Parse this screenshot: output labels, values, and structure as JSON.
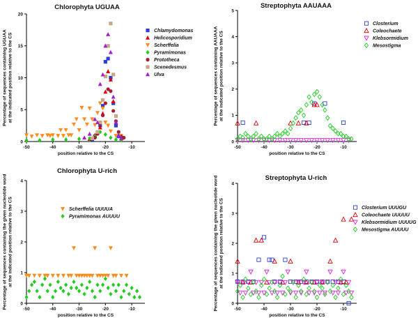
{
  "figure": {
    "background": "#ffffff",
    "axis_color": "#000000"
  },
  "chart_data": [
    {
      "id": "p1",
      "type": "scatter",
      "title": "Chlorophyta UGUAA",
      "xlabel": "position relative to the CS",
      "ylabel": [
        "Percentage of sequences containing UGUAA",
        "at the indicated position relative to the CS"
      ],
      "xlim": [
        -50,
        -5
      ],
      "ylim": [
        0,
        20
      ],
      "xticks": [
        -50,
        -40,
        -30,
        -20,
        -10
      ],
      "yticks": [
        0,
        5,
        10,
        15,
        20
      ],
      "legend_position": "top-right",
      "series": [
        {
          "name": "Chlamydomonas",
          "color": "#2b3fd6",
          "marker": "square",
          "x": [
            -25,
            -24,
            -23,
            -22,
            -21,
            -20,
            -19,
            -18,
            -17,
            -16,
            -15
          ],
          "y": [
            0.3,
            0.8,
            1.4,
            2.5,
            5.6,
            12.5,
            13.0,
            10.0,
            6.0,
            2.5,
            0.8
          ]
        },
        {
          "name": "Helicosporidium",
          "color": "#e00000",
          "marker": "triangle-up",
          "x": [
            -26,
            -24,
            -22,
            -21,
            -20,
            -19,
            -18,
            -17,
            -16,
            -15,
            -14
          ],
          "y": [
            0.4,
            1.0,
            2.2,
            4.4,
            7.8,
            11.0,
            9.7,
            6.3,
            3.0,
            1.2,
            0.5
          ]
        },
        {
          "name": "Scherffelia",
          "color": "#ff8c1a",
          "marker": "triangle-down",
          "x": [
            -50,
            -48,
            -46,
            -44,
            -42,
            -41,
            -40,
            -38,
            -37,
            -36,
            -35,
            -34,
            -33,
            -32,
            -31,
            -30,
            -29,
            -28,
            -27,
            -26,
            -25,
            -24,
            -23,
            -22,
            -21,
            -20,
            -19,
            -18,
            -16,
            -14
          ],
          "y": [
            1.0,
            0.8,
            1.0,
            0.9,
            1.0,
            0.9,
            1.0,
            0.9,
            1.8,
            0.9,
            1.8,
            1.0,
            1.0,
            2.7,
            3.5,
            1.8,
            5.3,
            3.5,
            2.7,
            5.2,
            3.5,
            2.6,
            4.5,
            6.0,
            5.2,
            3.0,
            2.5,
            1.6,
            0.9,
            0.9
          ]
        },
        {
          "name": "Pyramimonas",
          "color": "#22cc22",
          "marker": "diamond",
          "x": [
            -50,
            -45,
            -40,
            -35,
            -30,
            -26,
            -24,
            -22,
            -20,
            -18,
            -16,
            -14
          ],
          "y": [
            0.2,
            0.2,
            0.3,
            0.3,
            0.4,
            0.5,
            0.8,
            1.5,
            1.1,
            0.6,
            0.3,
            0.2
          ]
        },
        {
          "name": "Prototheca",
          "color": "#a51f32",
          "marker": "circle",
          "x": [
            -24,
            -23,
            -22,
            -21,
            -20,
            -19,
            -18,
            -17,
            -16,
            -15,
            -14,
            -13
          ],
          "y": [
            0.6,
            1.2,
            2.8,
            4.1,
            6.0,
            8.2,
            7.9,
            4.8,
            3.2,
            1.5,
            0.8,
            0.6
          ]
        },
        {
          "name": "Scenedesmus",
          "color": "#c8a886",
          "marker": "square",
          "x": [
            -25,
            -23,
            -22,
            -21,
            -20,
            -19,
            -18,
            -17,
            -16,
            -15
          ],
          "y": [
            0.5,
            1.5,
            3.0,
            6.5,
            10.2,
            15.0,
            18.5,
            10.5,
            4.0,
            1.0
          ]
        },
        {
          "name": "Ulva",
          "color": "#a21fcf",
          "marker": "triangle-up",
          "x": [
            -28,
            -26,
            -24,
            -23,
            -22,
            -21,
            -20,
            -19,
            -18,
            -17,
            -16,
            -15,
            -14
          ],
          "y": [
            0.6,
            1.2,
            3.5,
            3.0,
            9.0,
            10.5,
            15.0,
            16.8,
            14.0,
            7.0,
            3.0,
            1.0,
            0.5
          ]
        }
      ]
    },
    {
      "id": "p2",
      "type": "scatter",
      "title": "Streptophyta AAUAAA",
      "xlabel": "position relative to the CS",
      "ylabel": [
        "Percentage of sequences containing AAUAAA",
        "at the indicated position relative to the CS"
      ],
      "xlim": [
        -50,
        -5
      ],
      "ylim": [
        0,
        5
      ],
      "xticks": [
        -50,
        -40,
        -30,
        -20,
        -10
      ],
      "yticks": [
        0,
        1,
        2,
        3,
        4,
        5
      ],
      "legend_position": "top-right",
      "series": [
        {
          "name": "Closterium",
          "color": "#2b3fd6",
          "marker": "square-open",
          "x": [
            -48,
            -25,
            -23,
            -21,
            -17,
            -10
          ],
          "y": [
            0.72,
            0.72,
            0.72,
            1.45,
            1.45,
            0.72
          ]
        },
        {
          "name": "Coleochaete",
          "color": "#e00000",
          "marker": "triangle-up-open",
          "x": [
            -50,
            -43,
            -30,
            -27,
            -24,
            -21,
            -20
          ],
          "y": [
            0.7,
            0.7,
            0.7,
            0.7,
            0.7,
            1.4,
            1.4
          ]
        },
        {
          "name": "Klebsormidium",
          "color": "#e020e0",
          "marker": "triangle-down-open",
          "x": [
            -50,
            -48,
            -46,
            -44,
            -42,
            -40,
            -38,
            -36,
            -34,
            -32,
            -30,
            -28,
            -26,
            -24,
            -22,
            -20,
            -18,
            -16,
            -14,
            -12,
            -10,
            -8
          ],
          "y": [
            0.05,
            0.05,
            0.05,
            0.05,
            0.05,
            0.05,
            0.05,
            0.05,
            0.05,
            0.05,
            0.05,
            0.05,
            0.05,
            0.05,
            0.05,
            0.05,
            0.05,
            0.05,
            0.05,
            0.05,
            0.05,
            0.05
          ]
        },
        {
          "name": "Mesostigma",
          "color": "#22cc22",
          "marker": "diamond-open",
          "x": [
            -50,
            -49,
            -48,
            -47,
            -46,
            -45,
            -44,
            -43,
            -42,
            -41,
            -40,
            -39,
            -38,
            -37,
            -36,
            -35,
            -34,
            -33,
            -32,
            -31,
            -30,
            -29,
            -28,
            -27,
            -26,
            -25,
            -24,
            -23,
            -22,
            -21,
            -20,
            -19,
            -18,
            -17,
            -16,
            -15,
            -14,
            -13,
            -12,
            -11,
            -10,
            -9,
            -8,
            -7
          ],
          "y": [
            0.1,
            0.2,
            0.15,
            0.3,
            0.2,
            0.1,
            0.2,
            0.3,
            0.1,
            0.2,
            0.1,
            0.1,
            0.2,
            0.1,
            0.2,
            0.3,
            0.2,
            0.3,
            0.4,
            0.3,
            0.5,
            0.7,
            0.9,
            1.1,
            1.2,
            1.0,
            1.4,
            1.7,
            1.5,
            1.8,
            1.9,
            1.7,
            1.4,
            1.2,
            0.9,
            0.6,
            0.5,
            0.4,
            0.3,
            0.3,
            0.2,
            0.2,
            0.1,
            0.1
          ]
        }
      ]
    },
    {
      "id": "p3",
      "type": "scatter",
      "title": "Chlorophyta U-rich",
      "xlabel": "position relative to the CS",
      "ylabel": [
        "Percentage of sequences containing the given nucleotide word",
        "at the indicated position relative to the CS"
      ],
      "xlim": [
        -50,
        -5
      ],
      "ylim": [
        0,
        4
      ],
      "xticks": [
        -50,
        -40,
        -30,
        -20,
        -10
      ],
      "yticks": [
        0,
        1,
        2,
        3,
        4
      ],
      "legend_position": "top-left",
      "series": [
        {
          "name": "Scherffelia UUUUA",
          "color": "#ff8c1a",
          "marker": "triangle-down",
          "x": [
            -50,
            -49,
            -47,
            -45,
            -43,
            -42,
            -40,
            -38,
            -36,
            -34,
            -33,
            -32,
            -31,
            -30,
            -29,
            -28,
            -27,
            -26,
            -25,
            -24,
            -23,
            -22,
            -21,
            -20,
            -19,
            -18,
            -17,
            -16,
            -14,
            -12
          ],
          "y": [
            0.9,
            0.9,
            0.9,
            0.9,
            0.9,
            0.9,
            0.9,
            0.9,
            0.9,
            0.9,
            0.9,
            1.8,
            0.9,
            0.9,
            0.9,
            0.9,
            0.9,
            0.9,
            0.9,
            1.8,
            0.9,
            0.9,
            0.9,
            0.9,
            0.9,
            1.8,
            0.9,
            0.9,
            0.9,
            0.9
          ]
        },
        {
          "name": "Pyramimonas AUUUU",
          "color": "#22cc22",
          "marker": "diamond",
          "x": [
            -50,
            -49,
            -48,
            -47,
            -46,
            -45,
            -44,
            -43,
            -42,
            -41,
            -40,
            -39,
            -38,
            -37,
            -36,
            -35,
            -34,
            -33,
            -32,
            -31,
            -30,
            -29,
            -28,
            -27,
            -26,
            -25,
            -24,
            -23,
            -22,
            -21,
            -20,
            -19,
            -18,
            -17,
            -16,
            -15,
            -14,
            -13,
            -12,
            -11,
            -10,
            -9,
            -8,
            -7
          ],
          "y": [
            0.2,
            0.4,
            0.6,
            0.7,
            0.4,
            0.2,
            0.6,
            0.8,
            0.4,
            0.6,
            0.2,
            0.4,
            0.7,
            0.5,
            0.4,
            0.6,
            0.3,
            0.5,
            0.7,
            0.5,
            0.4,
            0.6,
            0.3,
            0.5,
            0.7,
            0.4,
            0.2,
            0.6,
            0.4,
            0.6,
            0.8,
            0.5,
            0.3,
            0.6,
            0.4,
            0.6,
            0.2,
            0.4,
            0.6,
            0.3,
            0.5,
            0.2,
            0.4,
            0.2
          ]
        }
      ]
    },
    {
      "id": "p4",
      "type": "scatter",
      "title": "Streptophyta U-rich",
      "xlabel": "position relative to the CS",
      "ylabel": [
        "Percentage of sequences containing the given nucleotide word",
        "at the indicated position relative to the CS"
      ],
      "xlim": [
        -50,
        -5
      ],
      "ylim": [
        0,
        4
      ],
      "xticks": [
        -50,
        -40,
        -30,
        -20,
        -10
      ],
      "yticks": [
        0,
        1,
        2,
        3,
        4
      ],
      "legend_position": "top-right",
      "series": [
        {
          "name": "Closterium UUUGU",
          "color": "#2b3fd6",
          "marker": "square-open",
          "x": [
            -50,
            -48,
            -46,
            -44,
            -42,
            -40,
            -38,
            -37,
            -36,
            -34,
            -32,
            -30,
            -28,
            -26,
            -24,
            -22,
            -20,
            -18,
            -16,
            -14,
            -12,
            -10,
            -8
          ],
          "y": [
            0.72,
            0.72,
            0.72,
            0.72,
            1.45,
            2.2,
            1.45,
            1.45,
            0.72,
            0.72,
            1.45,
            0.72,
            0.72,
            0.72,
            0.72,
            0.72,
            0.72,
            0.72,
            0.72,
            0.72,
            0.72,
            0.72,
            0.0
          ]
        },
        {
          "name": "Coleochaete UUUUU",
          "color": "#e00000",
          "marker": "triangle-up-open",
          "x": [
            -50,
            -48,
            -45,
            -43,
            -41,
            -39,
            -36,
            -33,
            -30,
            -27,
            -24,
            -21,
            -18,
            -15,
            -13,
            -11,
            -10,
            -9,
            -7
          ],
          "y": [
            1.4,
            0.7,
            0.7,
            2.1,
            2.1,
            0.7,
            1.4,
            0.7,
            1.4,
            0.7,
            0.7,
            0.7,
            0.7,
            1.4,
            2.1,
            0.7,
            2.8,
            0.7,
            2.8
          ]
        },
        {
          "name": "Klebsormidium UUUUG",
          "color": "#e020e0",
          "marker": "triangle-down-open",
          "x": [
            -50,
            -49,
            -48,
            -47,
            -46,
            -45,
            -44,
            -43,
            -42,
            -41,
            -40,
            -39,
            -38,
            -37,
            -36,
            -35,
            -34,
            -33,
            -32,
            -31,
            -30,
            -29,
            -28,
            -27,
            -26,
            -25,
            -24,
            -23,
            -22,
            -21,
            -20,
            -19,
            -18,
            -17,
            -16,
            -15,
            -14,
            -13,
            -12,
            -11,
            -10,
            -9,
            -8,
            -7
          ],
          "y": [
            0.7,
            0.35,
            0.7,
            0.35,
            0.7,
            1.05,
            0.35,
            0.7,
            0.35,
            0.7,
            0.35,
            1.05,
            0.7,
            0.35,
            0.7,
            0.35,
            0.7,
            0.35,
            0.7,
            1.05,
            0.35,
            0.7,
            0.35,
            0.7,
            0.35,
            0.7,
            1.05,
            0.35,
            0.7,
            0.35,
            0.7,
            0.35,
            0.7,
            0.35,
            0.7,
            1.05,
            0.35,
            0.7,
            0.35,
            0.7,
            1.05,
            0.35,
            0.7,
            0.35
          ]
        },
        {
          "name": "Mesostigma AUUUU",
          "color": "#22cc22",
          "marker": "diamond-open",
          "x": [
            -50,
            -49,
            -48,
            -47,
            -46,
            -45,
            -44,
            -43,
            -42,
            -41,
            -40,
            -39,
            -38,
            -37,
            -36,
            -35,
            -34,
            -33,
            -32,
            -31,
            -30,
            -29,
            -28,
            -27,
            -26,
            -25,
            -24,
            -23,
            -22,
            -21,
            -20,
            -19,
            -18,
            -17,
            -16,
            -15,
            -14,
            -13,
            -12,
            -11,
            -10,
            -9,
            -8,
            -7
          ],
          "y": [
            0.4,
            0.6,
            0.2,
            0.8,
            0.5,
            0.3,
            0.7,
            0.4,
            0.2,
            0.6,
            0.8,
            0.3,
            0.5,
            0.7,
            0.4,
            0.2,
            0.6,
            0.9,
            0.3,
            0.5,
            0.4,
            0.7,
            0.2,
            0.6,
            0.4,
            0.8,
            0.3,
            0.5,
            0.7,
            0.4,
            0.2,
            0.6,
            0.5,
            0.3,
            0.7,
            0.4,
            0.6,
            0.2,
            0.5,
            0.8,
            0.3,
            0.6,
            0.4,
            0.2
          ]
        }
      ]
    }
  ]
}
